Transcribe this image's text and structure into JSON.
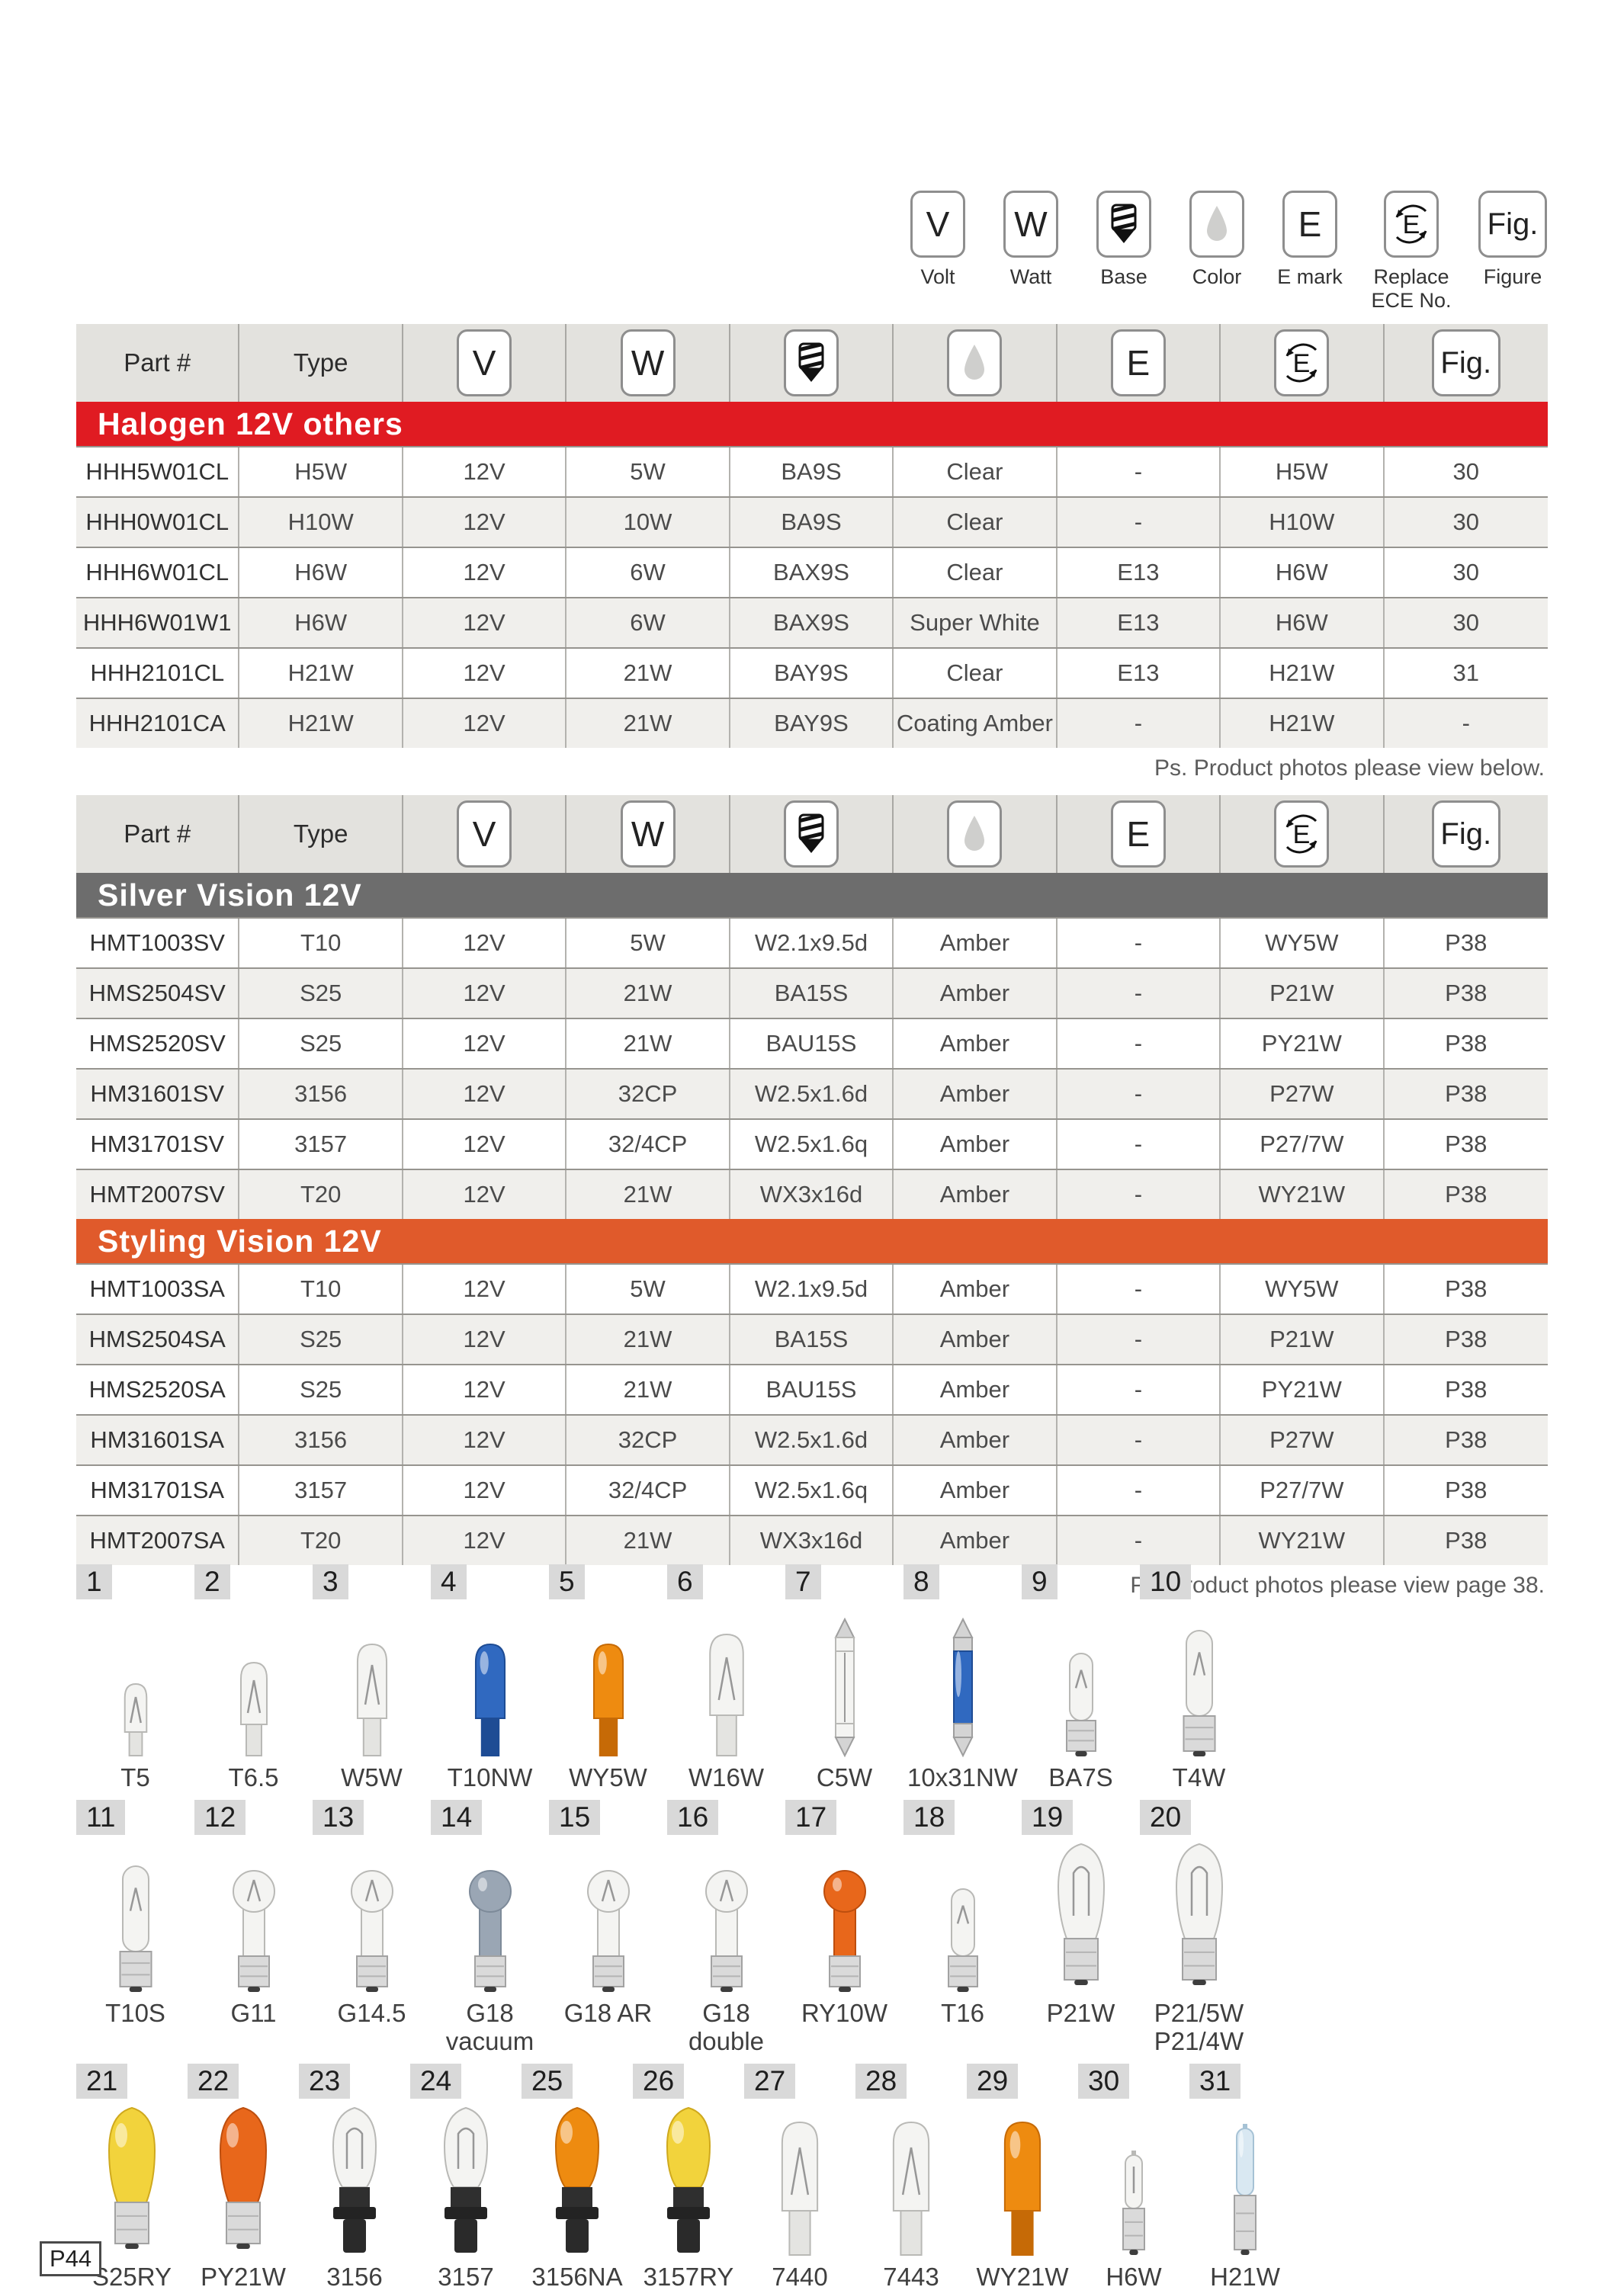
{
  "page": {
    "number_label": "P44"
  },
  "legend": {
    "items": [
      {
        "icon": "V",
        "label": "Volt"
      },
      {
        "icon": "W",
        "label": "Watt"
      },
      {
        "icon": "base",
        "label": "Base"
      },
      {
        "icon": "color",
        "label": "Color"
      },
      {
        "icon": "E",
        "label": "E mark"
      },
      {
        "icon": "replace",
        "label": "Replace ECE No."
      },
      {
        "icon": "Fig.",
        "label": "Figure"
      }
    ]
  },
  "table_header": [
    {
      "type": "text",
      "value": "Part #"
    },
    {
      "type": "text",
      "value": "Type"
    },
    {
      "type": "icon",
      "value": "V"
    },
    {
      "type": "icon",
      "value": "W"
    },
    {
      "type": "icon",
      "value": "base"
    },
    {
      "type": "icon",
      "value": "color"
    },
    {
      "type": "icon",
      "value": "E"
    },
    {
      "type": "icon",
      "value": "replace"
    },
    {
      "type": "icon",
      "value": "Fig."
    }
  ],
  "banner_colors": {
    "red": "#e01b22",
    "gray": "#6d6d6d",
    "orange": "#e05a2b"
  },
  "tables": [
    {
      "note": "Ps. Product photos please view below.",
      "sections": [
        {
          "banner": "Halogen 12V others",
          "style": "red",
          "rows": [
            [
              "HHH5W01CL",
              "H5W",
              "12V",
              "5W",
              "BA9S",
              "Clear",
              "-",
              "H5W",
              "30"
            ],
            [
              "HHH0W01CL",
              "H10W",
              "12V",
              "10W",
              "BA9S",
              "Clear",
              "-",
              "H10W",
              "30"
            ],
            [
              "HHH6W01CL",
              "H6W",
              "12V",
              "6W",
              "BAX9S",
              "Clear",
              "E13",
              "H6W",
              "30"
            ],
            [
              "HHH6W01W1",
              "H6W",
              "12V",
              "6W",
              "BAX9S",
              "Super White",
              "E13",
              "H6W",
              "30"
            ],
            [
              "HHH2101CL",
              "H21W",
              "12V",
              "21W",
              "BAY9S",
              "Clear",
              "E13",
              "H21W",
              "31"
            ],
            [
              "HHH2101CA",
              "H21W",
              "12V",
              "21W",
              "BAY9S",
              "Coating Amber",
              "-",
              "H21W",
              "-"
            ]
          ]
        }
      ]
    },
    {
      "note": "Ps. Product photos please view page 38.",
      "sections": [
        {
          "banner": "Silver Vision 12V",
          "style": "gray",
          "rows": [
            [
              "HMT1003SV",
              "T10",
              "12V",
              "5W",
              "W2.1x9.5d",
              "Amber",
              "-",
              "WY5W",
              "P38"
            ],
            [
              "HMS2504SV",
              "S25",
              "12V",
              "21W",
              "BA15S",
              "Amber",
              "-",
              "P21W",
              "P38"
            ],
            [
              "HMS2520SV",
              "S25",
              "12V",
              "21W",
              "BAU15S",
              "Amber",
              "-",
              "PY21W",
              "P38"
            ],
            [
              "HM31601SV",
              "3156",
              "12V",
              "32CP",
              "W2.5x1.6d",
              "Amber",
              "-",
              "P27W",
              "P38"
            ],
            [
              "HM31701SV",
              "3157",
              "12V",
              "32/4CP",
              "W2.5x1.6q",
              "Amber",
              "-",
              "P27/7W",
              "P38"
            ],
            [
              "HMT2007SV",
              "T20",
              "12V",
              "21W",
              "WX3x16d",
              "Amber",
              "-",
              "WY21W",
              "P38"
            ]
          ]
        },
        {
          "banner": "Styling Vision 12V",
          "style": "orange",
          "rows": [
            [
              "HMT1003SA",
              "T10",
              "12V",
              "5W",
              "W2.1x9.5d",
              "Amber",
              "-",
              "WY5W",
              "P38"
            ],
            [
              "HMS2504SA",
              "S25",
              "12V",
              "21W",
              "BA15S",
              "Amber",
              "-",
              "P21W",
              "P38"
            ],
            [
              "HMS2520SA",
              "S25",
              "12V",
              "21W",
              "BAU15S",
              "Amber",
              "-",
              "PY21W",
              "P38"
            ],
            [
              "HM31601SA",
              "3156",
              "12V",
              "32CP",
              "W2.5x1.6d",
              "Amber",
              "-",
              "P27W",
              "P38"
            ],
            [
              "HM31701SA",
              "3157",
              "12V",
              "32/4CP",
              "W2.5x1.6q",
              "Amber",
              "-",
              "P27/7W",
              "P38"
            ],
            [
              "HMT2007SA",
              "T20",
              "12V",
              "21W",
              "WX3x16d",
              "Amber",
              "-",
              "WY21W",
              "P38"
            ]
          ]
        }
      ]
    }
  ],
  "photos": {
    "rows": [
      [
        {
          "n": "1",
          "label": "T5",
          "glass": "clear",
          "form": "wedge-s"
        },
        {
          "n": "2",
          "label": "T6.5",
          "glass": "clear",
          "form": "wedge-m"
        },
        {
          "n": "3",
          "label": "W5W",
          "glass": "clear",
          "form": "wedge-l"
        },
        {
          "n": "4",
          "label": "T10NW",
          "glass": "blue",
          "form": "wedge-l"
        },
        {
          "n": "5",
          "label": "WY5W",
          "glass": "amber",
          "form": "wedge-l"
        },
        {
          "n": "6",
          "label": "W16W",
          "glass": "clear",
          "form": "wedge-xl"
        },
        {
          "n": "7",
          "label": "C5W",
          "glass": "clear",
          "form": "festoon"
        },
        {
          "n": "8",
          "label": "10x31NW",
          "glass": "blue",
          "form": "festoon"
        },
        {
          "n": "9",
          "label": "BA7S",
          "glass": "clear",
          "form": "bay-tube-s"
        },
        {
          "n": "10",
          "label": "T4W",
          "glass": "clear",
          "form": "bay-tube"
        }
      ],
      [
        {
          "n": "11",
          "label": "T10S",
          "glass": "clear",
          "form": "bay-tube"
        },
        {
          "n": "12",
          "label": "G11",
          "glass": "clear",
          "form": "bay-round"
        },
        {
          "n": "13",
          "label": "G14.5",
          "glass": "clear",
          "form": "bay-round"
        },
        {
          "n": "14",
          "label": "G18",
          "sub": "vacuum",
          "glass": "smoke",
          "form": "bay-round"
        },
        {
          "n": "15",
          "label": "G18 AR",
          "glass": "clear",
          "form": "bay-round"
        },
        {
          "n": "16",
          "label": "G18",
          "sub": "double",
          "glass": "clear",
          "form": "bay-round"
        },
        {
          "n": "17",
          "label": "RY10W",
          "glass": "orange",
          "form": "bay-round"
        },
        {
          "n": "18",
          "label": "T16",
          "glass": "clear",
          "form": "bay-tube-s"
        },
        {
          "n": "19",
          "label": "P21W",
          "glass": "clear",
          "form": "bay-big"
        },
        {
          "n": "20",
          "label": "P21/5W",
          "sub": "P21/4W",
          "glass": "clear",
          "form": "bay-big"
        }
      ],
      [
        {
          "n": "21",
          "label": "S25RY",
          "glass": "yellow",
          "form": "bay-big"
        },
        {
          "n": "22",
          "label": "PY21W",
          "glass": "orange",
          "form": "bay-big"
        },
        {
          "n": "23",
          "label": "3156",
          "glass": "clear",
          "form": "plastic"
        },
        {
          "n": "24",
          "label": "3157",
          "glass": "clear",
          "form": "plastic"
        },
        {
          "n": "25",
          "label": "3156NA",
          "glass": "amber",
          "form": "plastic"
        },
        {
          "n": "26",
          "label": "3157RY",
          "glass": "yellow",
          "form": "plastic"
        },
        {
          "n": "27",
          "label": "7440",
          "glass": "clear",
          "form": "wedge-big"
        },
        {
          "n": "28",
          "label": "7443",
          "glass": "clear",
          "form": "wedge-big"
        },
        {
          "n": "29",
          "label": "WY21W",
          "glass": "amber",
          "form": "wedge-big"
        },
        {
          "n": "30",
          "label": "H6W",
          "glass": "clear",
          "form": "halogen-s"
        },
        {
          "n": "31",
          "label": "H21W",
          "glass": "ice",
          "form": "halogen"
        }
      ]
    ]
  }
}
